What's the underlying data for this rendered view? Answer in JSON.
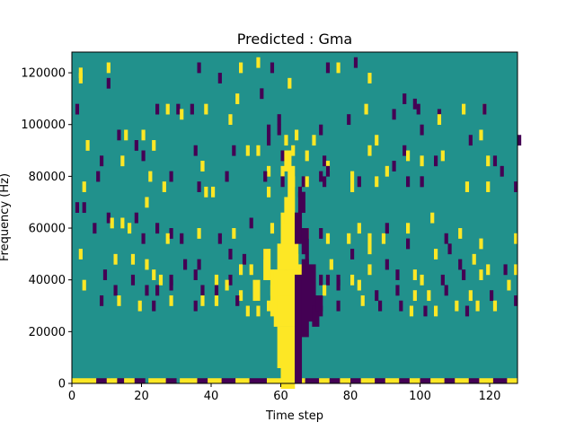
{
  "chart_data": {
    "type": "heatmap",
    "title": "Predicted : Gma",
    "xlabel": "Time step",
    "ylabel": "Frequency (Hz)",
    "xlim": [
      0,
      128
    ],
    "ylim": [
      0,
      128000
    ],
    "x_ticks": [
      0,
      20,
      40,
      60,
      80,
      100,
      120
    ],
    "y_ticks": [
      0,
      20000,
      40000,
      60000,
      80000,
      100000,
      120000
    ],
    "x_tick_labels": [
      "0",
      "20",
      "40",
      "60",
      "80",
      "100",
      "120"
    ],
    "y_tick_labels": [
      "0",
      "20000",
      "40000",
      "60000",
      "80000",
      "100000",
      "120000"
    ],
    "n_time_steps": 128,
    "n_freq_bins": 64,
    "bin_hz": 2000,
    "colors": {
      "background": "#21918c",
      "high": "#fde725",
      "low": "#440154"
    },
    "values_legend": {
      "background": 0,
      "high": 1,
      "low": -1
    },
    "cells": [
      [
        10,
        60,
        1
      ],
      [
        76,
        60,
        1
      ],
      [
        53,
        61,
        1
      ],
      [
        81,
        61,
        -1
      ],
      [
        2,
        59,
        1
      ],
      [
        36,
        60,
        -1
      ],
      [
        48,
        60,
        1
      ],
      [
        57,
        60,
        -1
      ],
      [
        73,
        60,
        -1
      ],
      [
        2,
        58,
        1
      ],
      [
        42,
        58,
        -1
      ],
      [
        85,
        58,
        1
      ],
      [
        10,
        57,
        -1
      ],
      [
        62,
        57,
        1
      ],
      [
        54,
        55,
        -1
      ],
      [
        47,
        54,
        1
      ],
      [
        95,
        54,
        -1
      ],
      [
        98,
        53,
        -1
      ],
      [
        118,
        52,
        1
      ],
      [
        84,
        52,
        1
      ],
      [
        99,
        52,
        -1
      ],
      [
        105,
        51,
        -1
      ],
      [
        112,
        52,
        1
      ],
      [
        118,
        52,
        -1
      ],
      [
        1,
        52,
        -1
      ],
      [
        24,
        52,
        -1
      ],
      [
        27,
        52,
        1
      ],
      [
        30,
        52,
        -1
      ],
      [
        34,
        52,
        -1
      ],
      [
        38,
        52,
        1
      ],
      [
        31,
        51,
        1
      ],
      [
        45,
        50,
        1
      ],
      [
        59,
        48,
        -1
      ],
      [
        64,
        47,
        1
      ],
      [
        61,
        46,
        1
      ],
      [
        56,
        46,
        -1
      ],
      [
        100,
        48,
        -1
      ],
      [
        92,
        51,
        -1
      ],
      [
        87,
        46,
        1
      ],
      [
        105,
        50,
        1
      ],
      [
        117,
        47,
        1
      ],
      [
        114,
        46,
        -1
      ],
      [
        128,
        46,
        -1
      ],
      [
        79,
        50,
        -1
      ],
      [
        71,
        48,
        -1
      ],
      [
        69,
        46,
        1
      ],
      [
        56,
        48,
        -1
      ],
      [
        59,
        50,
        -1
      ],
      [
        4,
        45,
        1
      ],
      [
        13,
        47,
        -1
      ],
      [
        15,
        47,
        1
      ],
      [
        20,
        47,
        1
      ],
      [
        18,
        45,
        -1
      ],
      [
        23,
        45,
        1
      ],
      [
        35,
        44,
        -1
      ],
      [
        53,
        44,
        1
      ],
      [
        50,
        44,
        1
      ],
      [
        46,
        44,
        -1
      ],
      [
        60,
        43,
        -1
      ],
      [
        63,
        44,
        1
      ],
      [
        67,
        43,
        1
      ],
      [
        72,
        42,
        -1
      ],
      [
        73,
        41,
        1
      ],
      [
        85,
        44,
        1
      ],
      [
        95,
        44,
        -1
      ],
      [
        106,
        43,
        1
      ],
      [
        119,
        42,
        1
      ],
      [
        121,
        42,
        -1
      ],
      [
        96,
        43,
        1
      ],
      [
        100,
        42,
        1
      ],
      [
        92,
        41,
        -1
      ],
      [
        104,
        42,
        -1
      ],
      [
        14,
        42,
        1
      ],
      [
        8,
        42,
        -1
      ],
      [
        20,
        43,
        -1
      ],
      [
        37,
        41,
        1
      ],
      [
        37,
        41,
        1
      ],
      [
        60,
        40,
        1
      ],
      [
        56,
        40,
        1
      ],
      [
        73,
        40,
        -1
      ],
      [
        90,
        40,
        1
      ],
      [
        7,
        39,
        -1
      ],
      [
        22,
        39,
        1
      ],
      [
        28,
        39,
        -1
      ],
      [
        44,
        39,
        -1
      ],
      [
        55,
        39,
        -1
      ],
      [
        60,
        38,
        -1
      ],
      [
        63,
        38,
        1
      ],
      [
        66,
        38,
        -1
      ],
      [
        67,
        38,
        1
      ],
      [
        72,
        38,
        -1
      ],
      [
        71,
        39,
        -1
      ],
      [
        80,
        39,
        1
      ],
      [
        100,
        38,
        -1
      ],
      [
        123,
        40,
        -1
      ],
      [
        3,
        37,
        1
      ],
      [
        26,
        37,
        1
      ],
      [
        36,
        37,
        -1
      ],
      [
        38,
        36,
        1
      ],
      [
        40,
        36,
        1
      ],
      [
        56,
        36,
        1
      ],
      [
        65,
        36,
        -1
      ],
      [
        80,
        37,
        1
      ],
      [
        82,
        38,
        -1
      ],
      [
        87,
        38,
        1
      ],
      [
        96,
        38,
        -1
      ],
      [
        100,
        38,
        -1
      ],
      [
        113,
        37,
        1
      ],
      [
        119,
        37,
        1
      ],
      [
        127,
        37,
        -1
      ],
      [
        21,
        34,
        1
      ],
      [
        1,
        33,
        -1
      ],
      [
        3,
        33,
        -1
      ],
      [
        10,
        31,
        -1
      ],
      [
        11,
        30,
        1
      ],
      [
        6,
        29,
        -1
      ],
      [
        14,
        30,
        1
      ],
      [
        16,
        29,
        1
      ],
      [
        18,
        31,
        -1
      ],
      [
        24,
        29,
        -1
      ],
      [
        28,
        28,
        -1
      ],
      [
        27,
        27,
        1
      ],
      [
        31,
        27,
        -1
      ],
      [
        20,
        27,
        -1
      ],
      [
        36,
        28,
        1
      ],
      [
        42,
        27,
        -1
      ],
      [
        46,
        28,
        1
      ],
      [
        51,
        30,
        -1
      ],
      [
        57,
        29,
        1
      ],
      [
        67,
        28,
        1
      ],
      [
        71,
        28,
        -1
      ],
      [
        73,
        27,
        1
      ],
      [
        63,
        31,
        1
      ],
      [
        60,
        31,
        1
      ],
      [
        63,
        30,
        1
      ],
      [
        62,
        29,
        1
      ],
      [
        79,
        27,
        1
      ],
      [
        82,
        29,
        1
      ],
      [
        85,
        27,
        1
      ],
      [
        89,
        27,
        1
      ],
      [
        90,
        29,
        -1
      ],
      [
        96,
        29,
        1
      ],
      [
        103,
        31,
        1
      ],
      [
        107,
        27,
        -1
      ],
      [
        111,
        28,
        1
      ],
      [
        117,
        26,
        1
      ],
      [
        127,
        27,
        1
      ],
      [
        2,
        24,
        1
      ],
      [
        12,
        23,
        1
      ],
      [
        17,
        23,
        1
      ],
      [
        21,
        22,
        1
      ],
      [
        32,
        22,
        -1
      ],
      [
        36,
        22,
        -1
      ],
      [
        45,
        24,
        -1
      ],
      [
        49,
        23,
        -1
      ],
      [
        55,
        24,
        -1
      ],
      [
        60,
        25,
        1
      ],
      [
        61,
        24,
        1
      ],
      [
        64,
        23,
        1
      ],
      [
        67,
        23,
        -1
      ],
      [
        74,
        22,
        1
      ],
      [
        80,
        24,
        -1
      ],
      [
        85,
        25,
        1
      ],
      [
        90,
        22,
        -1
      ],
      [
        96,
        26,
        -1
      ],
      [
        104,
        24,
        1
      ],
      [
        108,
        25,
        -1
      ],
      [
        111,
        22,
        -1
      ],
      [
        115,
        23,
        1
      ],
      [
        119,
        21,
        1
      ],
      [
        124,
        21,
        -1
      ],
      [
        127,
        21,
        1
      ],
      [
        9,
        20,
        -1
      ],
      [
        17,
        19,
        -1
      ],
      [
        23,
        20,
        1
      ],
      [
        25,
        19,
        1
      ],
      [
        28,
        19,
        -1
      ],
      [
        35,
        20,
        -1
      ],
      [
        41,
        19,
        1
      ],
      [
        45,
        19,
        -1
      ],
      [
        48,
        21,
        1
      ],
      [
        51,
        21,
        1
      ],
      [
        57,
        20,
        1
      ],
      [
        61,
        20,
        -1
      ],
      [
        65,
        21,
        1
      ],
      [
        71,
        19,
        -1
      ],
      [
        73,
        19,
        -1
      ],
      [
        76,
        19,
        -1
      ],
      [
        80,
        19,
        1
      ],
      [
        85,
        21,
        1
      ],
      [
        93,
        20,
        -1
      ],
      [
        98,
        20,
        1
      ],
      [
        100,
        19,
        1
      ],
      [
        106,
        19,
        -1
      ],
      [
        112,
        20,
        -1
      ],
      [
        117,
        20,
        1
      ],
      [
        3,
        18,
        1
      ],
      [
        12,
        17,
        -1
      ],
      [
        21,
        17,
        -1
      ],
      [
        24,
        17,
        -1
      ],
      [
        28,
        18,
        -1
      ],
      [
        37,
        17,
        -1
      ],
      [
        41,
        17,
        -1
      ],
      [
        44,
        18,
        1
      ],
      [
        48,
        16,
        1
      ],
      [
        53,
        16,
        -1
      ],
      [
        57,
        17,
        1
      ],
      [
        62,
        16,
        1
      ],
      [
        67,
        16,
        -1
      ],
      [
        72,
        17,
        1
      ],
      [
        76,
        18,
        -1
      ],
      [
        82,
        18,
        1
      ],
      [
        87,
        16,
        -1
      ],
      [
        93,
        17,
        -1
      ],
      [
        98,
        16,
        1
      ],
      [
        102,
        16,
        1
      ],
      [
        107,
        17,
        -1
      ],
      [
        114,
        16,
        1
      ],
      [
        120,
        16,
        -1
      ],
      [
        125,
        18,
        1
      ],
      [
        8,
        15,
        -1
      ],
      [
        13,
        15,
        1
      ],
      [
        19,
        14,
        1
      ],
      [
        23,
        14,
        -1
      ],
      [
        28,
        15,
        1
      ],
      [
        35,
        14,
        -1
      ],
      [
        37,
        15,
        1
      ],
      [
        41,
        15,
        1
      ],
      [
        47,
        15,
        -1
      ],
      [
        50,
        13,
        1
      ],
      [
        53,
        13,
        1
      ],
      [
        56,
        14,
        1
      ],
      [
        62,
        14,
        1
      ],
      [
        66,
        14,
        -1
      ],
      [
        69,
        13,
        1
      ],
      [
        71,
        13,
        -1
      ],
      [
        76,
        14,
        -1
      ],
      [
        83,
        15,
        1
      ],
      [
        88,
        14,
        -1
      ],
      [
        94,
        14,
        -1
      ],
      [
        97,
        13,
        1
      ],
      [
        101,
        13,
        -1
      ],
      [
        104,
        13,
        1
      ],
      [
        110,
        14,
        1
      ],
      [
        113,
        13,
        -1
      ],
      [
        116,
        14,
        1
      ],
      [
        121,
        14,
        1
      ],
      [
        127,
        15,
        -1
      ]
    ],
    "regions": [
      [
        60,
        63,
        16,
        19,
        1
      ],
      [
        59,
        63,
        20,
        27,
        1
      ],
      [
        58,
        63,
        28,
        33,
        1
      ],
      [
        58,
        64,
        34,
        38,
        1
      ],
      [
        59,
        64,
        39,
        43,
        1
      ],
      [
        60,
        64,
        44,
        47,
        1
      ],
      [
        61,
        63,
        48,
        52,
        1
      ],
      [
        64,
        65,
        17,
        37,
        -1
      ],
      [
        66,
        67,
        26,
        40,
        -1
      ],
      [
        68,
        69,
        29,
        39,
        -1
      ],
      [
        57,
        58,
        30,
        36,
        1
      ],
      [
        55,
        56,
        37,
        42,
        1
      ],
      [
        52,
        53,
        33,
        36,
        1
      ],
      [
        62,
        63,
        53,
        58,
        1
      ],
      [
        61,
        62,
        58,
        61,
        1
      ],
      [
        64,
        65,
        44,
        49,
        -1
      ],
      [
        65,
        66,
        50,
        53,
        -1
      ],
      [
        66,
        67,
        42,
        46,
        -1
      ],
      [
        69,
        70,
        28,
        31,
        -1
      ],
      [
        70,
        71,
        31,
        33,
        -1
      ]
    ],
    "bottom_runs": [
      [
        0,
        6,
        1
      ],
      [
        7,
        10,
        -1
      ],
      [
        10,
        12,
        1
      ],
      [
        13,
        14,
        -1
      ],
      [
        15,
        17,
        1
      ],
      [
        18,
        20,
        -1
      ],
      [
        22,
        26,
        1
      ],
      [
        27,
        29,
        -1
      ],
      [
        31,
        35,
        1
      ],
      [
        36,
        38,
        -1
      ],
      [
        39,
        42,
        1
      ],
      [
        43,
        46,
        -1
      ],
      [
        47,
        50,
        1
      ],
      [
        51,
        55,
        -1
      ],
      [
        56,
        59,
        1
      ],
      [
        60,
        62,
        -1
      ],
      [
        63,
        66,
        1
      ],
      [
        67,
        70,
        -1
      ],
      [
        71,
        73,
        1
      ],
      [
        74,
        76,
        -1
      ],
      [
        77,
        79,
        1
      ],
      [
        80,
        82,
        -1
      ],
      [
        83,
        86,
        1
      ],
      [
        87,
        89,
        -1
      ],
      [
        90,
        93,
        1
      ],
      [
        94,
        96,
        -1
      ],
      [
        97,
        99,
        1
      ],
      [
        100,
        102,
        -1
      ],
      [
        103,
        106,
        1
      ],
      [
        107,
        109,
        -1
      ],
      [
        110,
        113,
        1
      ],
      [
        114,
        116,
        -1
      ],
      [
        117,
        120,
        1
      ],
      [
        121,
        124,
        -1
      ],
      [
        125,
        127,
        1
      ]
    ]
  }
}
